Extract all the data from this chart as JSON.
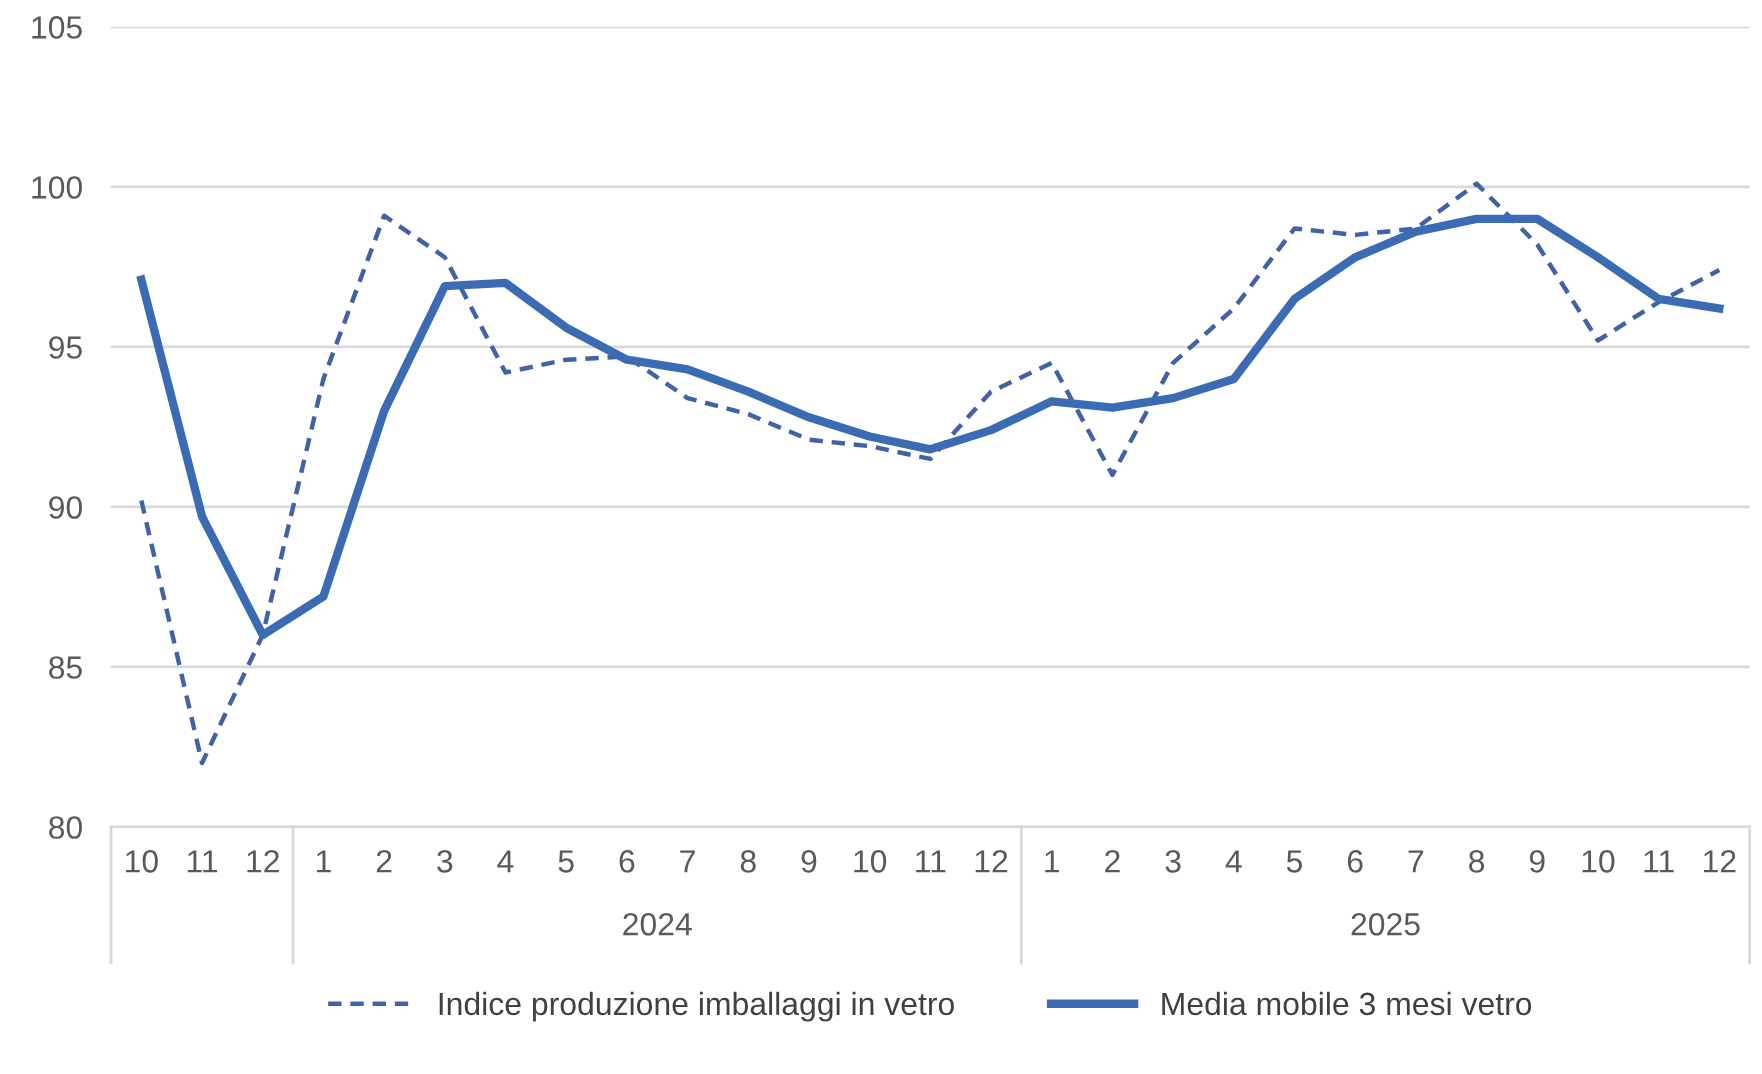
{
  "chart_data": {
    "type": "line",
    "categories": [
      "10",
      "11",
      "12",
      "1",
      "2",
      "3",
      "4",
      "5",
      "6",
      "7",
      "8",
      "9",
      "10",
      "11",
      "12",
      "1",
      "2",
      "3",
      "4",
      "5",
      "6",
      "7",
      "8",
      "9",
      "10",
      "11",
      "12"
    ],
    "series": [
      {
        "name": "Indice produzione imballaggi in vetro",
        "color": "#3f62a8",
        "line_style": "dashed",
        "values": [
          90.2,
          82,
          86,
          94,
          99.1,
          97.8,
          94.2,
          94.6,
          94.7,
          93.4,
          92.9,
          92.1,
          91.9,
          91.5,
          93.6,
          94.5,
          91,
          94.5,
          96.2,
          98.7,
          98.5,
          98.7,
          100.1,
          98.2,
          95.2,
          96.4,
          97.4
        ]
      },
      {
        "name": "Media mobile 3 mesi vetro",
        "color": "#3b6bb3",
        "line_style": "solid",
        "values": [
          97.1,
          89.7,
          86,
          87.2,
          93,
          96.9,
          97,
          95.6,
          94.6,
          94.3,
          93.6,
          92.8,
          92.2,
          91.8,
          92.4,
          93.3,
          93.1,
          93.4,
          94,
          96.5,
          97.8,
          98.6,
          99,
          99,
          97.8,
          96.5,
          96.2
        ]
      }
    ],
    "annotations": [
      "2024",
      "2025"
    ],
    "ylim": [
      80,
      105
    ],
    "yticks": [
      80,
      85,
      90,
      95,
      100,
      105
    ],
    "grid": "y",
    "legend": "bottom",
    "marker": "none"
  }
}
